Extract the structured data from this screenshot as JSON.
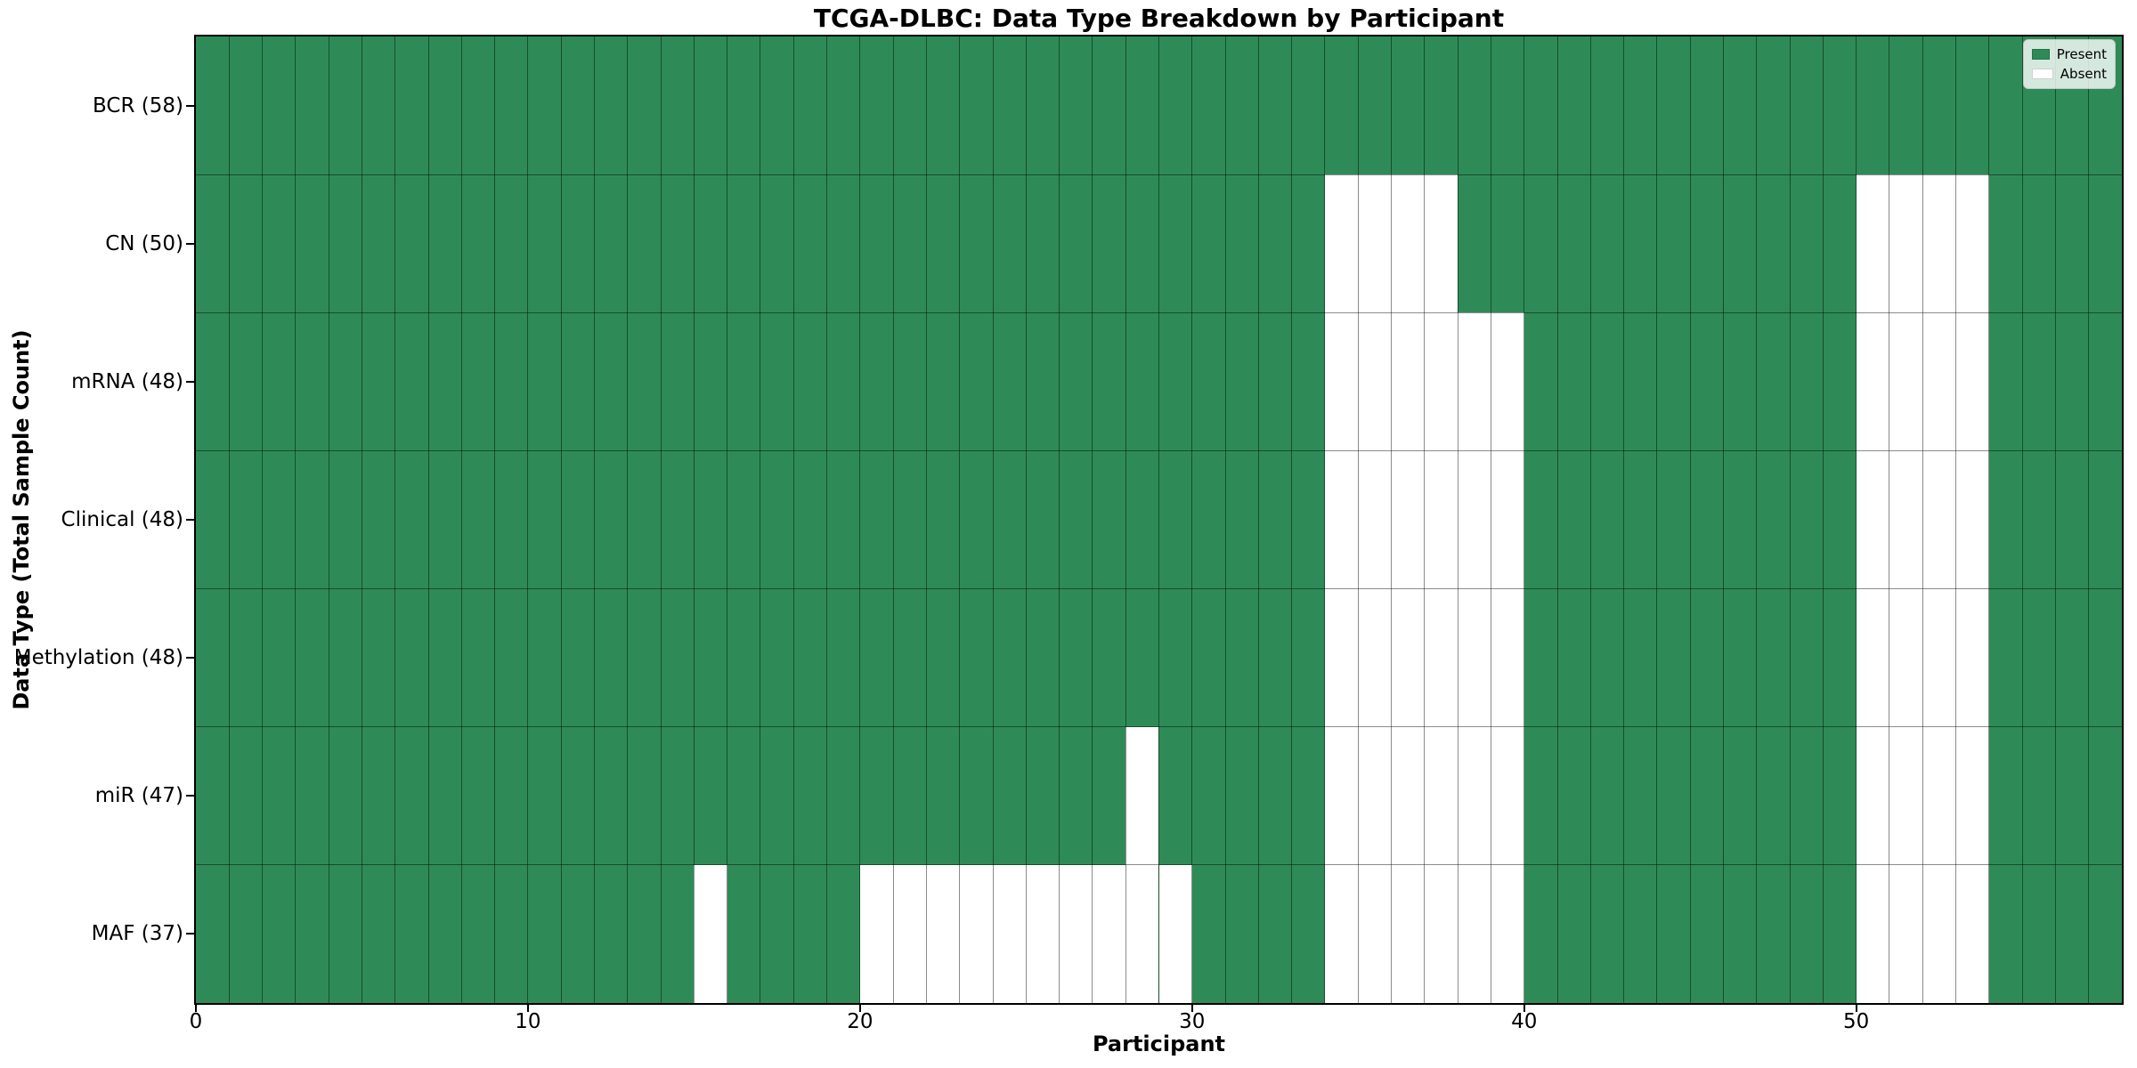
{
  "figure": {
    "title": "TCGA-DLBC: Data Type Breakdown by Participant",
    "xlabel": "Participant",
    "ylabel": "Data Type (Total Sample Count)"
  },
  "legend": {
    "items": [
      {
        "label": "Present",
        "color": "#2e8b57"
      },
      {
        "label": "Absent",
        "color": "#ffffff"
      }
    ]
  },
  "chart_data": {
    "type": "heatmap",
    "title": "TCGA-DLBC: Data Type Breakdown by Participant",
    "xlabel": "Participant",
    "ylabel": "Data Type (Total Sample Count)",
    "n_columns": 58,
    "x_range": [
      0,
      58
    ],
    "x_tick_values": [
      0,
      10,
      20,
      30,
      40,
      50
    ],
    "x_tick_labels": [
      "0",
      "10",
      "20",
      "30",
      "40",
      "50"
    ],
    "grid": true,
    "legend_position": "upper right",
    "present_color": "#2e8b57",
    "absent_color": "#ffffff",
    "grid_color": "rgba(0,0,0,0.45)",
    "rows": [
      {
        "label": "BCR (58)",
        "data_type": "BCR",
        "total": 58,
        "absent_participants": []
      },
      {
        "label": "CN (50)",
        "data_type": "CN",
        "total": 50,
        "absent_participants": [
          34,
          35,
          36,
          37,
          50,
          51,
          52,
          53
        ]
      },
      {
        "label": "mRNA (48)",
        "data_type": "mRNA",
        "total": 48,
        "absent_participants": [
          34,
          35,
          36,
          37,
          38,
          39,
          50,
          51,
          52,
          53
        ]
      },
      {
        "label": "Clinical (48)",
        "data_type": "Clinical",
        "total": 48,
        "absent_participants": [
          34,
          35,
          36,
          37,
          38,
          39,
          50,
          51,
          52,
          53
        ]
      },
      {
        "label": "Methylation (48)",
        "data_type": "Methylation",
        "total": 48,
        "absent_participants": [
          34,
          35,
          36,
          37,
          38,
          39,
          50,
          51,
          52,
          53
        ]
      },
      {
        "label": "miR (47)",
        "data_type": "miR",
        "total": 47,
        "absent_participants": [
          28,
          34,
          35,
          36,
          37,
          38,
          39,
          50,
          51,
          52,
          53
        ]
      },
      {
        "label": "MAF (37)",
        "data_type": "MAF",
        "total": 37,
        "absent_participants": [
          15,
          20,
          21,
          22,
          23,
          24,
          25,
          26,
          27,
          28,
          29,
          34,
          35,
          36,
          37,
          38,
          39,
          50,
          51,
          52,
          53
        ]
      }
    ]
  }
}
